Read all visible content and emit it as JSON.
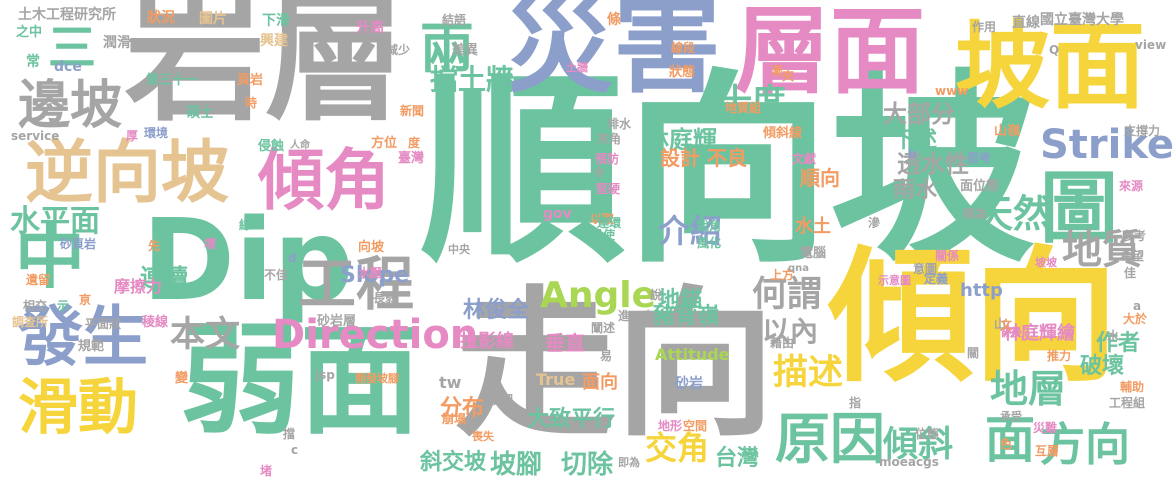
{
  "palette": {
    "gray": "#a5a5a5",
    "green": "#6cc3a0",
    "yellow": "#f6d43c",
    "pink": "#e58ac3",
    "blue": "#8c9fcb",
    "tan": "#e5c492",
    "orange": "#f29c63",
    "lime": "#a9d653"
  },
  "words": [
    {
      "id": "shunxiangpo",
      "text": "順向坡",
      "color": "green",
      "weight": 1
    },
    {
      "id": "yanceng",
      "text": "岩層",
      "color": "gray",
      "weight": 2
    },
    {
      "id": "zaihai",
      "text": "災害",
      "color": "blue",
      "weight": 3
    },
    {
      "id": "cengmian",
      "text": "層面",
      "color": "pink",
      "weight": 3
    },
    {
      "id": "pomian",
      "text": "坡面",
      "color": "yellow",
      "weight": 3
    },
    {
      "id": "dip",
      "text": "Dip",
      "color": "green",
      "weight": 1
    },
    {
      "id": "qingxiang",
      "text": "傾向",
      "color": "yellow",
      "weight": 1
    },
    {
      "id": "zouxiang",
      "text": "走向",
      "color": "gray",
      "weight": 1
    },
    {
      "id": "ruomian",
      "text": "弱面",
      "color": "green",
      "weight": 1
    },
    {
      "id": "nixiangpo",
      "text": "逆向坡",
      "color": "tan",
      "weight": 4
    },
    {
      "id": "qingjiao",
      "text": "傾角",
      "color": "pink",
      "weight": 4
    },
    {
      "id": "fasheng",
      "text": "發生",
      "color": "blue",
      "weight": 4
    },
    {
      "id": "huadong",
      "text": "滑動",
      "color": "yellow",
      "weight": 4
    },
    {
      "id": "zhong",
      "text": "中",
      "color": "green",
      "weight": 4
    },
    {
      "id": "tu",
      "text": "圖",
      "color": "green",
      "weight": 4
    },
    {
      "id": "biaopo",
      "text": "邊坡",
      "color": "gray",
      "weight": 5
    },
    {
      "id": "gongcheng",
      "text": "工程",
      "color": "gray",
      "weight": 5
    },
    {
      "id": "yuanyin",
      "text": "原因",
      "color": "green",
      "weight": 5
    },
    {
      "id": "fangxiang",
      "text": "方向",
      "color": "green",
      "weight": 5
    },
    {
      "id": "dizhi",
      "text": "地質",
      "color": "gray",
      "weight": 5
    },
    {
      "id": "direction",
      "text": "Direction",
      "color": "pink",
      "weight": 5
    },
    {
      "id": "strike",
      "text": "Strike",
      "color": "blue",
      "weight": 5
    },
    {
      "id": "angle",
      "text": "Angle",
      "color": "lime",
      "weight": 5
    },
    {
      "id": "mian",
      "text": "面",
      "color": "green",
      "weight": 5
    },
    {
      "id": "liang",
      "text": "兩",
      "color": "green",
      "weight": 5
    },
    {
      "id": "san",
      "text": "三",
      "color": "green",
      "weight": 5
    },
    {
      "id": "benwen",
      "text": "本文",
      "color": "gray",
      "weight": 6
    },
    {
      "id": "heiwei",
      "text": "何謂",
      "color": "gray",
      "weight": 6
    },
    {
      "id": "miaoshu",
      "text": "描述",
      "color": "yellow",
      "weight": 6
    },
    {
      "id": "diceng",
      "text": "地層",
      "color": "green",
      "weight": 6
    },
    {
      "id": "tianran",
      "text": "天然",
      "color": "green",
      "weight": 6
    },
    {
      "id": "qingxie",
      "text": "傾斜",
      "color": "green",
      "weight": 6
    },
    {
      "id": "jiaojiao",
      "text": "交角",
      "color": "yellow",
      "weight": 6
    },
    {
      "id": "jieshao",
      "text": "介紹",
      "color": "blue",
      "weight": 6
    },
    {
      "id": "shuipingmian",
      "text": "水平面",
      "color": "green",
      "weight": 7
    },
    {
      "id": "dangtuqiang",
      "text": "擋土牆",
      "color": "green",
      "weight": 7
    },
    {
      "id": "shidu",
      "text": "十度",
      "color": "green",
      "weight": 7
    },
    {
      "id": "yinei",
      "text": "以內",
      "color": "gray",
      "weight": 7
    },
    {
      "id": "lianxu",
      "text": "連續",
      "color": "green",
      "weight": 8
    },
    {
      "id": "dabufen",
      "text": "大部分",
      "color": "gray",
      "weight": 8
    },
    {
      "id": "xiashu",
      "text": "下述",
      "color": "green",
      "weight": 8
    },
    {
      "id": "toushuixing",
      "text": "透水性",
      "color": "gray",
      "weight": 8
    },
    {
      "id": "yushui",
      "text": "雨水",
      "color": "gray",
      "weight": 8
    },
    {
      "id": "linting",
      "text": "林庭輝",
      "color": "green",
      "weight": 8
    },
    {
      "id": "shejibuliang",
      "text": "設計 不良",
      "color": "orange",
      "weight": 8
    },
    {
      "id": "pojiao",
      "text": "坡腳",
      "color": "green",
      "weight": 8
    },
    {
      "id": "qiechu",
      "text": "切除",
      "color": "green",
      "weight": 8
    },
    {
      "id": "xiejiaopo",
      "text": "斜交坡",
      "color": "green",
      "weight": 8
    },
    {
      "id": "taiwan",
      "text": "台灣",
      "color": "green",
      "weight": 8
    },
    {
      "id": "dazhipingxing",
      "text": "大致平行",
      "color": "green",
      "weight": 8
    },
    {
      "id": "fenbu",
      "text": "分布",
      "color": "orange",
      "weight": 8
    },
    {
      "id": "zhubeiling",
      "text": "豬背嶺",
      "color": "green",
      "weight": 8
    },
    {
      "id": "dimao",
      "text": "地錨",
      "color": "green",
      "weight": 8
    },
    {
      "id": "linjunquan",
      "text": "林俊全",
      "color": "blue",
      "weight": 8
    },
    {
      "id": "slope",
      "text": "Slope",
      "color": "blue",
      "weight": 8
    },
    {
      "id": "pohuai",
      "text": "破壞",
      "color": "green",
      "weight": 8
    },
    {
      "id": "zuozhe",
      "text": "作者",
      "color": "green",
      "weight": 8
    },
    {
      "id": "shunxiang",
      "text": "順向",
      "color": "orange",
      "weight": 8
    },
    {
      "id": "shuitu",
      "text": "水土",
      "color": "orange",
      "weight": 8
    },
    {
      "id": "lintinghuihui",
      "text": "林庭輝繪",
      "color": "pink",
      "weight": 8
    },
    {
      "id": "http",
      "text": "http",
      "color": "blue",
      "weight": 8
    },
    {
      "id": "touyingxian",
      "text": "投影線",
      "color": "pink",
      "weight": 8
    },
    {
      "id": "chuizhi",
      "text": "垂直",
      "color": "pink",
      "weight": 8
    },
    {
      "id": "tw",
      "text": "tw",
      "color": "gray",
      "weight": 9
    },
    {
      "id": "true",
      "text": "True",
      "color": "tan",
      "weight": 9
    },
    {
      "id": "mianxiang",
      "text": "面向",
      "color": "orange",
      "weight": 9
    },
    {
      "id": "attitude",
      "text": "Attitude",
      "color": "lime",
      "weight": 9
    },
    {
      "id": "shiyan",
      "text": "砂岩",
      "color": "blue",
      "weight": 9
    },
    {
      "id": "gov",
      "text": "gov",
      "color": "pink",
      "weight": 9
    },
    {
      "id": "rimingao",
      "text": "摩擦力",
      "color": "pink",
      "weight": 9
    },
    {
      "id": "tumujing",
      "text": "土木工程研究所",
      "color": "gray",
      "weight": 9
    },
    {
      "id": "ntu",
      "text": "國立臺灣大學",
      "color": "gray",
      "weight": 9
    },
    {
      "id": "zhuangkuang",
      "text": "狀況",
      "color": "orange",
      "weight": 9
    },
    {
      "id": "tupian",
      "text": "圖片",
      "color": "tan",
      "weight": 9
    },
    {
      "id": "xiahua",
      "text": "下滑",
      "color": "green",
      "weight": 9
    },
    {
      "id": "xingjian",
      "text": "興建",
      "color": "tan",
      "weight": 9
    },
    {
      "id": "shengao",
      "text": "升高",
      "color": "pink",
      "weight": 9
    },
    {
      "id": "jiedi",
      "text": "結語",
      "color": "gray",
      "weight": 9
    },
    {
      "id": "tiao",
      "text": "條",
      "color": "orange",
      "weight": 9
    },
    {
      "id": "zhixian",
      "text": "直線",
      "color": "gray",
      "weight": 9
    },
    {
      "id": "zuoyong",
      "text": "作用",
      "color": "gray",
      "weight": 9
    },
    {
      "id": "view",
      "text": "view",
      "color": "gray",
      "weight": 9
    },
    {
      "id": "zhizhong",
      "text": "之中",
      "color": "green",
      "weight": 9
    },
    {
      "id": "runhua",
      "text": "潤滑",
      "color": "gray",
      "weight": 9
    },
    {
      "id": "chang",
      "text": "常",
      "color": "green",
      "weight": 9
    },
    {
      "id": "dce",
      "text": "dce",
      "color": "blue",
      "weight": 9
    },
    {
      "id": "disanshiyi",
      "text": "第三十一",
      "color": "green",
      "weight": 9
    },
    {
      "id": "yeyan",
      "text": "頁岩",
      "color": "orange",
      "weight": 9
    },
    {
      "id": "shuoshi",
      "text": "碩士",
      "color": "green",
      "weight": 9
    },
    {
      "id": "huanjing",
      "text": "環境",
      "color": "blue",
      "weight": 9
    },
    {
      "id": "service",
      "text": "service",
      "color": "gray",
      "weight": 9
    },
    {
      "id": "qinshi",
      "text": "侵蝕",
      "color": "green",
      "weight": 9
    },
    {
      "id": "xianduan",
      "text": "線段",
      "color": "orange",
      "weight": 9
    },
    {
      "id": "zhuangtai",
      "text": "狀態",
      "color": "orange",
      "weight": 9
    },
    {
      "id": "dizhizu",
      "text": "地質組",
      "color": "orange",
      "weight": 9
    },
    {
      "id": "qingxieliang",
      "text": "傾斜線",
      "color": "orange",
      "weight": 9
    },
    {
      "id": "shanling",
      "text": "山嶺",
      "color": "orange",
      "weight": 9
    },
    {
      "id": "wenxian",
      "text": "文獻",
      "color": "pink",
      "weight": 9
    },
    {
      "id": "sikao",
      "text": "思考",
      "color": "blue",
      "weight": 9
    },
    {
      "id": "mianweitai",
      "text": "面位態",
      "color": "gray",
      "weight": 9
    },
    {
      "id": "chengwei",
      "text": "稱為",
      "color": "gray",
      "weight": 9
    },
    {
      "id": "jijishui",
      "text": "幾留水",
      "color": "green",
      "weight": 9
    },
    {
      "id": "zhichengli",
      "text": "支撐力",
      "color": "gray",
      "weight": 9
    },
    {
      "id": "laiyuan",
      "text": "來源",
      "color": "pink",
      "weight": 9
    },
    {
      "id": "cankao",
      "text": "參考",
      "color": "gray",
      "weight": 9
    },
    {
      "id": "xiwang",
      "text": "希望",
      "color": "gray",
      "weight": 9
    },
    {
      "id": "guanxi",
      "text": "關係",
      "color": "pink",
      "weight": 9
    },
    {
      "id": "diannao",
      "text": "電腦",
      "color": "gray",
      "weight": 9
    },
    {
      "id": "yitu",
      "text": "意圖",
      "color": "gray",
      "weight": 9
    },
    {
      "id": "popo",
      "text": "坡坡",
      "color": "pink",
      "weight": 9
    },
    {
      "id": "shiyitu",
      "text": "示意圖",
      "color": "pink",
      "weight": 9
    },
    {
      "id": "dingyi",
      "text": "定義",
      "color": "blue",
      "weight": 9
    },
    {
      "id": "yiqu",
      "text": "以取",
      "color": "orange",
      "weight": 9
    },
    {
      "id": "yubao",
      "text": "預防",
      "color": "pink",
      "weight": 9
    },
    {
      "id": "paishui",
      "text": "排水",
      "color": "gray",
      "weight": 9
    },
    {
      "id": "jiajiao",
      "text": "夾角",
      "color": "gray",
      "weight": 9
    },
    {
      "id": "ruijiao",
      "text": "銳角",
      "color": "green",
      "weight": 9
    },
    {
      "id": "fenghua",
      "text": "風化",
      "color": "green",
      "weight": 9
    },
    {
      "id": "jianying",
      "text": "堅硬",
      "color": "pink",
      "weight": 9
    },
    {
      "id": "lianhuan",
      "text": "連環",
      "color": "green",
      "weight": 9
    },
    {
      "id": "yishi",
      "text": "易使",
      "color": "green",
      "weight": 9
    },
    {
      "id": "shangfang",
      "text": "上方",
      "color": "orange",
      "weight": 9
    },
    {
      "id": "tuce",
      "text": "土牆",
      "color": "pink",
      "weight": 9
    },
    {
      "id": "jianshao",
      "text": "減少",
      "color": "gray",
      "weight": 9
    },
    {
      "id": "chayi",
      "text": "差異",
      "color": "gray",
      "weight": 9
    },
    {
      "id": "xinwen",
      "text": "新聞",
      "color": "orange",
      "weight": 9
    },
    {
      "id": "fangwei",
      "text": "方位",
      "color": "orange",
      "weight": 9
    },
    {
      "id": "du",
      "text": "度",
      "color": "orange",
      "weight": 9
    },
    {
      "id": "taiwan2",
      "text": "臺灣",
      "color": "pink",
      "weight": 9
    },
    {
      "id": "renming",
      "text": "人命",
      "color": "gray",
      "weight": 9
    },
    {
      "id": "shiyeyan",
      "text": "砂頁岩",
      "color": "blue",
      "weight": 9
    },
    {
      "id": "yijiao",
      "text": "遺留",
      "color": "orange",
      "weight": 9
    },
    {
      "id": "xiangjiao",
      "text": "相交",
      "color": "gray",
      "weight": 9
    },
    {
      "id": "diaochasuo",
      "text": "調查所",
      "color": "tan",
      "weight": 9
    },
    {
      "id": "pingmianzhuang",
      "text": "平面狀",
      "color": "gray",
      "weight": 9
    },
    {
      "id": "guifan",
      "text": "規範",
      "color": "gray",
      "weight": 9
    },
    {
      "id": "lengxian",
      "text": "稜線",
      "color": "pink",
      "weight": 9
    },
    {
      "id": "xiangpo",
      "text": "向坡",
      "color": "orange",
      "weight": 9
    },
    {
      "id": "zhongyang",
      "text": "中央",
      "color": "gray",
      "weight": 9
    },
    {
      "id": "buji",
      "text": "不佳",
      "color": "gray",
      "weight": 9
    },
    {
      "id": "shuiya",
      "text": "水壓",
      "color": "pink",
      "weight": 9
    },
    {
      "id": "shiyanceng",
      "text": "砂岩層",
      "color": "gray",
      "weight": 9
    },
    {
      "id": "jsp",
      "text": "jsp",
      "color": "gray",
      "weight": 9
    },
    {
      "id": "kaifapojiao",
      "text": "開發坡腳",
      "color": "orange",
      "weight": 9
    },
    {
      "id": "bengta",
      "text": "崩塌",
      "color": "orange",
      "weight": 9
    },
    {
      "id": "kangqing",
      "text": "抵禦",
      "color": "gray",
      "weight": 9
    },
    {
      "id": "jinyibu",
      "text": "進一步",
      "color": "gray",
      "weight": 9
    },
    {
      "id": "guanshu",
      "text": "闡述",
      "color": "gray",
      "weight": 9
    },
    {
      "id": "sangshi",
      "text": "喪失",
      "color": "orange",
      "weight": 9
    },
    {
      "id": "kongjian",
      "text": "空間",
      "color": "orange",
      "weight": 9
    },
    {
      "id": "dixing",
      "text": "地形",
      "color": "pink",
      "weight": 9
    },
    {
      "id": "jiwei",
      "text": "即為",
      "color": "gray",
      "weight": 9
    },
    {
      "id": "moeacgs",
      "text": "moeacgs",
      "color": "gray",
      "weight": 9
    },
    {
      "id": "weitai",
      "text": "位態",
      "color": "gray",
      "weight": 9
    },
    {
      "id": "zai",
      "text": "災難",
      "color": "pink",
      "weight": 9
    },
    {
      "id": "huxiang",
      "text": "互層",
      "color": "orange",
      "weight": 9
    },
    {
      "id": "fuzhu",
      "text": "輔助",
      "color": "orange",
      "weight": 9
    },
    {
      "id": "gongchengzu",
      "text": "工程組",
      "color": "gray",
      "weight": 9
    },
    {
      "id": "dayu",
      "text": "大於",
      "color": "orange",
      "weight": 9
    },
    {
      "id": "tuili",
      "text": "推力",
      "color": "orange",
      "weight": 9
    },
    {
      "id": "chengshou",
      "text": "承受",
      "color": "gray",
      "weight": 9
    },
    {
      "id": "beihou",
      "text": "背後",
      "color": "pink",
      "weight": 9
    },
    {
      "id": "jiyou",
      "text": "藉由",
      "color": "gray",
      "weight": 9
    },
    {
      "id": "qna",
      "text": "qna",
      "color": "gray",
      "weight": 9
    },
    {
      "id": "www",
      "text": "www",
      "color": "orange",
      "weight": 9
    },
    {
      "id": "qishou",
      "text": "漸",
      "color": "orange",
      "weight": 9
    },
    {
      "id": "b",
      "text": "b",
      "color": "blue",
      "weight": 9
    },
    {
      "id": "d",
      "text": "d",
      "color": "blue",
      "weight": 9
    },
    {
      "id": "a",
      "text": "a",
      "color": "gray",
      "weight": 9
    },
    {
      "id": "q",
      "text": "Q",
      "color": "gray",
      "weight": 9
    },
    {
      "id": "c",
      "text": "c",
      "color": "gray",
      "weight": 9
    },
    {
      "id": "xian",
      "text": "線",
      "color": "green",
      "weight": 9
    },
    {
      "id": "hou",
      "text": "厚",
      "color": "pink",
      "weight": 9
    },
    {
      "id": "shi",
      "text": "時",
      "color": "orange",
      "weight": 9
    },
    {
      "id": "huai",
      "text": "壞",
      "color": "pink",
      "weight": 9
    },
    {
      "id": "xian2",
      "text": "先",
      "color": "orange",
      "weight": 9
    },
    {
      "id": "jia",
      "text": "夾",
      "color": "orange",
      "weight": 9
    },
    {
      "id": "shuo",
      "text": "說",
      "color": "gray",
      "weight": 9
    },
    {
      "id": "ruo",
      "text": "弱",
      "color": "gray",
      "weight": 9
    },
    {
      "id": "zhi",
      "text": "指",
      "color": "gray",
      "weight": 9
    },
    {
      "id": "se",
      "text": "色",
      "color": "orange",
      "weight": 9
    },
    {
      "id": "bian",
      "text": "變",
      "color": "orange",
      "weight": 9
    },
    {
      "id": "zhang",
      "text": "長",
      "color": "gray",
      "weight": 9
    },
    {
      "id": "guan",
      "text": "關",
      "color": "gray",
      "weight": 9
    },
    {
      "id": "dang",
      "text": "擋",
      "color": "gray",
      "weight": 9
    },
    {
      "id": "du2",
      "text": "堵",
      "color": "pink",
      "weight": 9
    },
    {
      "id": "ling",
      "text": "令",
      "color": "gray",
      "weight": 9
    },
    {
      "id": "yi",
      "text": "易",
      "color": "gray",
      "weight": 9
    },
    {
      "id": "shan",
      "text": "山",
      "color": "gray",
      "weight": 9
    },
    {
      "id": "wen",
      "text": "文",
      "color": "orange",
      "weight": 9
    },
    {
      "id": "shen",
      "text": "滲",
      "color": "gray",
      "weight": 9
    },
    {
      "id": "shui",
      "text": "水",
      "color": "gray",
      "weight": 9
    },
    {
      "id": "jia2",
      "text": "佳",
      "color": "gray",
      "weight": 9
    },
    {
      "id": "shi2",
      "text": "示",
      "color": "green",
      "weight": 9
    },
    {
      "id": "yuan",
      "text": "亰",
      "color": "orange",
      "weight": 9
    }
  ]
}
